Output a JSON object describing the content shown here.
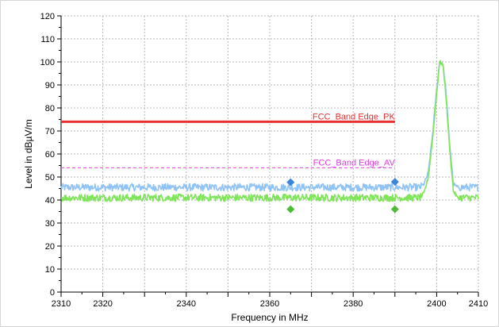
{
  "chart_data": {
    "type": "line",
    "title": "",
    "xlabel": "Frequency in MHz",
    "ylabel": "Level in dBµV/m",
    "xlim": [
      2310,
      2410
    ],
    "ylim": [
      0,
      120
    ],
    "grid": true,
    "x_ticks": [
      2310,
      2320,
      2340,
      2360,
      2380,
      2400,
      2410
    ],
    "y_ticks": [
      0,
      10,
      20,
      30,
      40,
      50,
      60,
      70,
      80,
      90,
      100,
      110,
      120
    ],
    "series": [
      {
        "color": "#8fc3f5",
        "x": [
          2310,
          2320,
          2330,
          2340,
          2350,
          2360,
          2370,
          2380,
          2390,
          2396,
          2397,
          2398,
          2399,
          2400,
          2400.7,
          2401.5,
          2402.2,
          2403,
          2404,
          2405,
          2406,
          2410
        ],
        "y": [
          45.5,
          45.5,
          45.5,
          45.5,
          45.5,
          45.5,
          45.5,
          45.5,
          45.5,
          45.5,
          47,
          52,
          68,
          88,
          100,
          99,
          88,
          67,
          47,
          45.5,
          45.5,
          45.5
        ]
      },
      {
        "color": "#7fe45a",
        "x": [
          2310,
          2320,
          2330,
          2340,
          2350,
          2360,
          2370,
          2380,
          2390,
          2396,
          2397,
          2398,
          2399,
          2400,
          2400.7,
          2401.5,
          2402.2,
          2403,
          2404,
          2405,
          2406,
          2410
        ],
        "y": [
          41,
          41,
          41,
          41,
          41,
          41,
          41,
          41,
          41,
          41,
          43,
          50,
          66,
          86,
          100,
          99,
          86,
          65,
          44,
          41,
          41,
          41
        ]
      }
    ],
    "limit_lines": [
      {
        "label": "FCC_Band Edge_PK",
        "y": 74,
        "x_range": [
          2310,
          2390
        ],
        "color": "#e83030"
      },
      {
        "label": "FCC_Band Edge_AV",
        "y": 54,
        "x_range": [
          2310,
          2390
        ],
        "color": "#e040e0"
      }
    ],
    "markers": [
      {
        "x": 2365,
        "y": 47.7,
        "color": "#3a86d8"
      },
      {
        "x": 2390,
        "y": 47.9,
        "color": "#3a86d8"
      },
      {
        "x": 2365,
        "y": 36,
        "color": "#4dbb35"
      },
      {
        "x": 2390,
        "y": 36,
        "color": "#4dbb35"
      }
    ]
  }
}
